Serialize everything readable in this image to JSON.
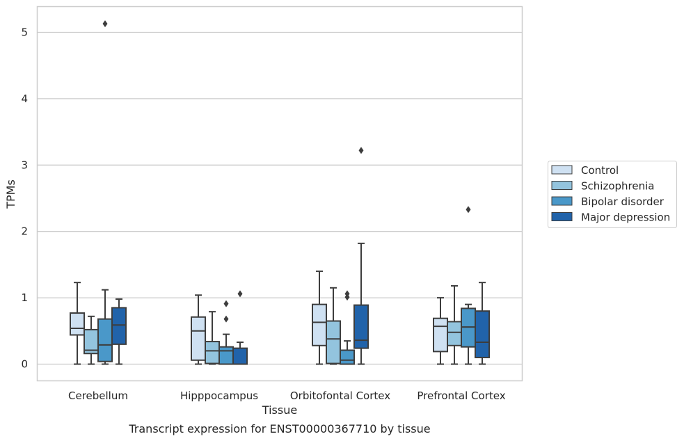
{
  "chart_data": {
    "type": "box",
    "caption": "Transcript expression for ENST00000367710 by tissue",
    "xlabel": "Tissue",
    "ylabel": "TPMs",
    "ylim": [
      -0.25,
      5.4
    ],
    "yticks": [
      0,
      1,
      2,
      3,
      4,
      5
    ],
    "grid": "y",
    "legend_position": "right",
    "categories": [
      "Cerebellum",
      "Hipppocampus",
      "Orbitofontal Cortex",
      "Prefrontal Cortex"
    ],
    "series": [
      {
        "name": "Control",
        "color": "#cfe1f2",
        "boxes": [
          {
            "whislo": 0.0,
            "q1": 0.44,
            "med": 0.54,
            "q3": 0.77,
            "whishi": 1.23,
            "fliers": []
          },
          {
            "whislo": 0.0,
            "q1": 0.06,
            "med": 0.5,
            "q3": 0.71,
            "whishi": 1.04,
            "fliers": []
          },
          {
            "whislo": 0.0,
            "q1": 0.28,
            "med": 0.63,
            "q3": 0.9,
            "whishi": 1.4,
            "fliers": []
          },
          {
            "whislo": 0.0,
            "q1": 0.19,
            "med": 0.57,
            "q3": 0.69,
            "whishi": 1.0,
            "fliers": []
          }
        ]
      },
      {
        "name": "Schizophrenia",
        "color": "#93c4de",
        "boxes": [
          {
            "whislo": 0.0,
            "q1": 0.16,
            "med": 0.21,
            "q3": 0.52,
            "whishi": 0.72,
            "fliers": []
          },
          {
            "whislo": 0.0,
            "q1": 0.01,
            "med": 0.2,
            "q3": 0.34,
            "whishi": 0.79,
            "fliers": []
          },
          {
            "whislo": 0.0,
            "q1": 0.01,
            "med": 0.38,
            "q3": 0.65,
            "whishi": 1.15,
            "fliers": []
          },
          {
            "whislo": 0.0,
            "q1": 0.28,
            "med": 0.48,
            "q3": 0.64,
            "whishi": 1.18,
            "fliers": []
          }
        ]
      },
      {
        "name": "Bipolar disorder",
        "color": "#4a98c9",
        "boxes": [
          {
            "whislo": 0.0,
            "q1": 0.04,
            "med": 0.29,
            "q3": 0.68,
            "whishi": 1.12,
            "fliers": [
              5.13
            ]
          },
          {
            "whislo": 0.0,
            "q1": 0.0,
            "med": 0.2,
            "q3": 0.26,
            "whishi": 0.45,
            "fliers": [
              0.68,
              0.91
            ]
          },
          {
            "whislo": 0.0,
            "q1": 0.0,
            "med": 0.06,
            "q3": 0.21,
            "whishi": 0.35,
            "fliers": [
              1.01,
              1.06
            ]
          },
          {
            "whislo": 0.0,
            "q1": 0.26,
            "med": 0.56,
            "q3": 0.84,
            "whishi": 0.9,
            "fliers": [
              2.33
            ]
          }
        ]
      },
      {
        "name": "Major depression",
        "color": "#2163aa",
        "boxes": [
          {
            "whislo": 0.0,
            "q1": 0.3,
            "med": 0.59,
            "q3": 0.85,
            "whishi": 0.98,
            "fliers": []
          },
          {
            "whislo": 0.0,
            "q1": 0.0,
            "med": 0.0,
            "q3": 0.24,
            "whishi": 0.33,
            "fliers": [
              1.06
            ]
          },
          {
            "whislo": 0.0,
            "q1": 0.24,
            "med": 0.36,
            "q3": 0.89,
            "whishi": 1.82,
            "fliers": [
              3.22
            ]
          },
          {
            "whislo": 0.0,
            "q1": 0.1,
            "med": 0.33,
            "q3": 0.8,
            "whishi": 1.23,
            "fliers": []
          }
        ]
      }
    ],
    "styles": {
      "grid_color": "#cccccc",
      "frame_color": "#cccccc",
      "line_color": "#3d3d3d",
      "text_color": "#262626"
    }
  }
}
